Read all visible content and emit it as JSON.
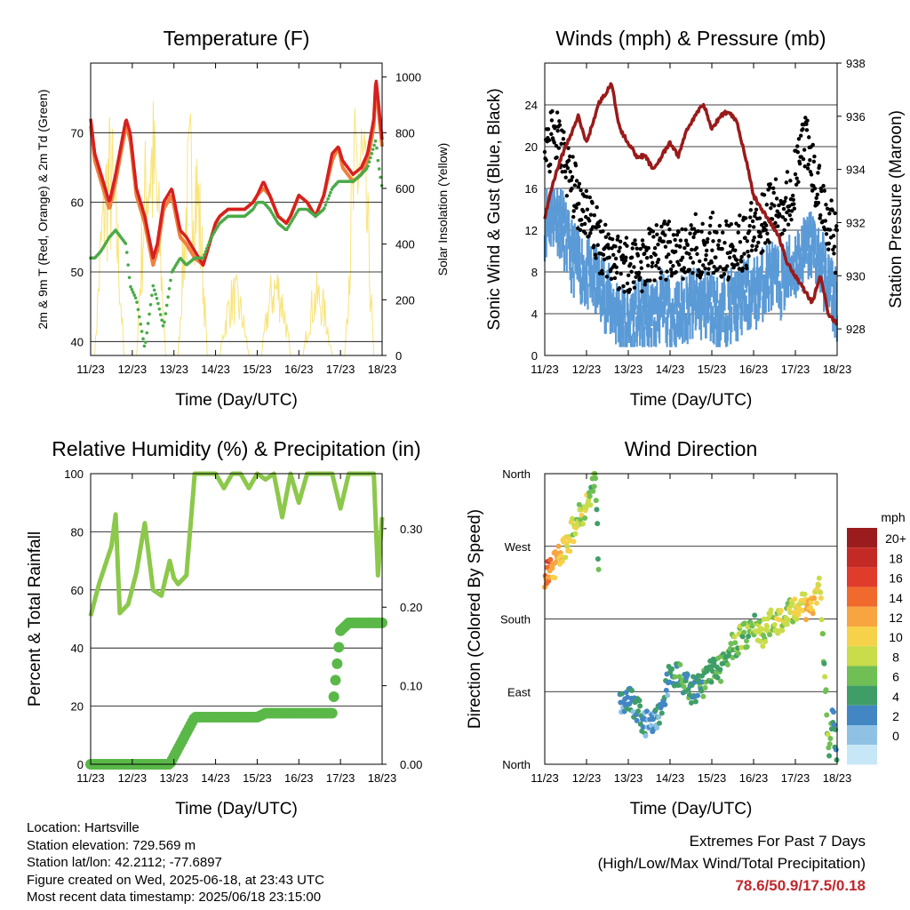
{
  "colors": {
    "temp2m": "#f0803c",
    "temp9m": "#d62020",
    "dew": "#4aaa48",
    "solar": "#f8e47a",
    "wind": "#5a9ad6",
    "gust": "#000000",
    "pressure": "#9a1a1a",
    "rh": "#8cc84b",
    "precip": "#5ab848",
    "extremes": "#c0272d"
  },
  "x_ticks": [
    "11/23",
    "12/23",
    "13/23",
    "14/23",
    "15/23",
    "16/23",
    "17/23",
    "18/23"
  ],
  "chart_data": [
    {
      "id": "temperature",
      "type": "line",
      "title": "Temperature (F)",
      "xlabel": "Time (Day/UTC)",
      "ylabel": "2m & 9m T (Red, Orange) & 2m Td (Green)",
      "y2label": "Solar Insolation (Yellow)",
      "ylim": [
        38,
        80
      ],
      "y2lim": [
        0,
        1050
      ],
      "yticks": [
        40,
        50,
        60,
        70
      ],
      "y2ticks": [
        0,
        200,
        400,
        600,
        800,
        1000
      ],
      "x": [
        11.0,
        11.1,
        11.25,
        11.45,
        11.6,
        11.85,
        11.95,
        12.1,
        12.3,
        12.5,
        12.6,
        12.75,
        12.95,
        13.15,
        13.3,
        13.5,
        13.7,
        13.9,
        14.0,
        14.1,
        14.3,
        14.5,
        14.7,
        14.9,
        15.0,
        15.15,
        15.3,
        15.5,
        15.7,
        15.8,
        16.0,
        16.2,
        16.4,
        16.6,
        16.8,
        16.95,
        17.05,
        17.3,
        17.5,
        17.65,
        17.8,
        17.85,
        17.9,
        18.0
      ],
      "series": [
        {
          "name": "9m T",
          "values": [
            72,
            67,
            64,
            60,
            64,
            72,
            70,
            62,
            58,
            52,
            54,
            60,
            62,
            56,
            55,
            53,
            51,
            55,
            57,
            58,
            59,
            59,
            59,
            60,
            61,
            63,
            61,
            58,
            57,
            58,
            61,
            60,
            58,
            61,
            67,
            68,
            66,
            64,
            65,
            67,
            72,
            78,
            75,
            69
          ]
        },
        {
          "name": "2m T",
          "values": [
            71,
            66,
            63,
            59,
            63,
            71,
            69,
            61,
            57,
            51,
            53,
            59,
            61,
            55,
            54,
            52,
            51,
            55,
            57,
            58,
            59,
            59,
            59,
            60,
            61,
            62,
            61,
            58,
            57,
            58,
            61,
            60,
            58,
            61,
            66,
            68,
            65,
            63,
            64,
            66,
            71,
            77,
            74,
            68
          ]
        },
        {
          "name": "2m Td",
          "values": [
            52,
            52,
            53,
            55,
            56,
            54,
            48,
            46,
            39,
            48,
            46,
            42,
            50,
            52,
            51,
            52,
            52,
            55,
            56,
            57,
            58,
            58,
            58,
            59,
            60,
            60,
            59,
            57,
            56,
            57,
            59,
            59,
            58,
            59,
            62,
            63,
            63,
            63,
            64,
            65,
            68,
            69,
            66,
            62
          ]
        },
        {
          "name": "Solar",
          "days": [
            11,
            12,
            13,
            14,
            15,
            16,
            17
          ],
          "peaks": [
            900,
            1000,
            950,
            300,
            350,
            300,
            1020
          ]
        }
      ]
    },
    {
      "id": "winds",
      "type": "scatter",
      "title": "Winds (mph) & Pressure (mb)",
      "xlabel": "Time (Day/UTC)",
      "ylabel": "Sonic Wind & Gust (Blue, Black)",
      "y2label": "Station Pressure (Maroon)",
      "ylim": [
        0,
        28
      ],
      "y2lim": [
        927,
        938
      ],
      "yticks": [
        0,
        4,
        8,
        12,
        16,
        20,
        24
      ],
      "y2ticks": [
        928,
        930,
        932,
        934,
        936,
        938
      ],
      "x": [
        11.0,
        11.2,
        11.4,
        11.6,
        11.8,
        12.0,
        12.3,
        12.6,
        12.8,
        13.0,
        13.2,
        13.4,
        13.6,
        13.8,
        14.0,
        14.2,
        14.4,
        14.6,
        14.8,
        15.0,
        15.2,
        15.4,
        15.6,
        15.8,
        16.0,
        16.2,
        16.4,
        16.6,
        16.8,
        17.0,
        17.2,
        17.4,
        17.6,
        17.8,
        18.0
      ],
      "series": [
        {
          "name": "Wind",
          "values": [
            14,
            15,
            14,
            11,
            10,
            9,
            8,
            6,
            5,
            4,
            5,
            5,
            5,
            6,
            5,
            5,
            6,
            6,
            6,
            6,
            5,
            6,
            6,
            7,
            7,
            8,
            9,
            8,
            9,
            10,
            11,
            12,
            10,
            8,
            6
          ]
        },
        {
          "name": "Gust",
          "values": [
            18,
            20,
            19,
            16,
            14,
            13,
            10,
            9,
            8,
            8,
            8,
            8,
            9,
            9,
            9,
            8,
            9,
            10,
            9,
            10,
            9,
            9,
            10,
            10,
            11,
            12,
            13,
            13,
            14,
            16,
            20,
            17,
            14,
            12,
            9
          ]
        },
        {
          "name": "Pressure",
          "values": [
            932.2,
            933.5,
            934.5,
            935.2,
            936.0,
            935.0,
            936.5,
            937.2,
            935.5,
            935.0,
            934.5,
            934.5,
            934.0,
            934.5,
            935.0,
            934.5,
            935.5,
            936.0,
            936.5,
            935.5,
            936.0,
            936.2,
            935.8,
            934.5,
            933.0,
            932.5,
            932.0,
            931.5,
            930.5,
            930.0,
            929.5,
            929.0,
            930.0,
            928.5,
            928.2
          ]
        }
      ]
    },
    {
      "id": "rh_precip",
      "type": "line",
      "title": "Relative Humidity (%) & Precipitation (in)",
      "xlabel": "Time (Day/UTC)",
      "ylabel": "Percent & Total Rainfall",
      "ylim": [
        0,
        100
      ],
      "y2lim": [
        0,
        0.37
      ],
      "yticks": [
        0,
        20,
        40,
        60,
        80,
        100
      ],
      "y2ticks": [
        "0.00",
        "0.10",
        "0.20",
        "0.30"
      ],
      "x": [
        11.0,
        11.2,
        11.5,
        11.6,
        11.7,
        11.9,
        12.1,
        12.3,
        12.5,
        12.7,
        12.9,
        13.0,
        13.1,
        13.3,
        13.5,
        13.7,
        14.0,
        14.2,
        14.4,
        14.6,
        14.8,
        15.0,
        15.2,
        15.4,
        15.6,
        15.8,
        16.0,
        16.2,
        16.4,
        16.6,
        16.8,
        17.0,
        17.2,
        17.4,
        17.6,
        17.8,
        17.9,
        18.0
      ],
      "series": [
        {
          "name": "RH",
          "values": [
            51,
            62,
            75,
            86,
            52,
            55,
            66,
            83,
            60,
            58,
            70,
            64,
            62,
            65,
            100,
            100,
            100,
            95,
            100,
            100,
            95,
            100,
            98,
            100,
            85,
            100,
            90,
            100,
            100,
            100,
            100,
            88,
            100,
            100,
            100,
            100,
            65,
            85
          ]
        },
        {
          "name": "Precipitation",
          "values": [
            0,
            0,
            0,
            0,
            0,
            0,
            0,
            0,
            0,
            0,
            0,
            0.01,
            0.02,
            0.04,
            0.06,
            0.06,
            0.06,
            0.06,
            0.06,
            0.06,
            0.06,
            0.06,
            0.065,
            0.065,
            0.065,
            0.065,
            0.065,
            0.065,
            0.065,
            0.065,
            0.065,
            0.17,
            0.18,
            0.18,
            0.18,
            0.18,
            0.18,
            0.18
          ]
        }
      ]
    },
    {
      "id": "wind_direction",
      "type": "scatter",
      "title": "Wind Direction",
      "xlabel": "Time (Day/UTC)",
      "ylabel": "Direction (Colored By Speed)",
      "yticks": [
        "North",
        "East",
        "South",
        "West",
        "North"
      ],
      "ylim": [
        0,
        360
      ],
      "legend_title": "mph",
      "legend": [
        "20+",
        "18",
        "16",
        "14",
        "12",
        "10",
        "8",
        "6",
        "4",
        "2",
        "0"
      ],
      "legend_colors": [
        "#9b1c1c",
        "#c42a25",
        "#e03c2c",
        "#f06a2d",
        "#f7a540",
        "#f6d14a",
        "#c9dc4a",
        "#6fbf55",
        "#3f9e67",
        "#4287c3",
        "#8ec1e4",
        "#c7e7f7"
      ],
      "x": [
        11.0,
        11.15,
        11.3,
        11.45,
        11.6,
        11.75,
        11.9,
        12.0,
        12.1,
        12.2,
        12.5,
        12.8,
        13.0,
        13.2,
        13.4,
        13.6,
        13.8,
        14.0,
        14.2,
        14.4,
        14.6,
        14.8,
        15.0,
        15.2,
        15.4,
        15.6,
        15.8,
        16.0,
        16.2,
        16.4,
        16.6,
        16.8,
        17.0,
        17.2,
        17.4,
        17.5,
        17.6,
        17.8,
        17.9,
        18.0
      ],
      "direction": [
        237,
        243,
        250,
        265,
        280,
        298,
        312,
        320,
        330,
        355,
        20,
        75,
        85,
        70,
        50,
        55,
        60,
        120,
        110,
        95,
        90,
        100,
        120,
        115,
        140,
        150,
        160,
        170,
        160,
        175,
        180,
        185,
        190,
        195,
        200,
        210,
        215,
        15,
        60,
        10
      ],
      "speed": [
        16,
        15,
        14,
        12,
        11,
        10,
        9,
        10,
        8,
        7,
        5,
        4,
        4,
        5,
        4,
        4,
        4,
        5,
        6,
        6,
        5,
        6,
        7,
        7,
        7,
        8,
        9,
        8,
        9,
        10,
        10,
        10,
        11,
        12,
        14,
        12,
        10,
        7,
        5,
        4
      ]
    }
  ],
  "info": {
    "location": "Location: Hartsville",
    "elevation": "Station elevation: 729.569 m",
    "latlon": "Station lat/lon: 42.2112; -77.6897",
    "created": "Figure created on Wed, 2025-06-18, at 23:43 UTC",
    "timestamp": "Most recent data timestamp: 2025/06/18 23:15:00"
  },
  "extremes": {
    "title": "Extremes For Past 7 Days",
    "subtitle": "(High/Low/Max Wind/Total Precipitation)",
    "values": "78.6/50.9/17.5/0.18"
  }
}
